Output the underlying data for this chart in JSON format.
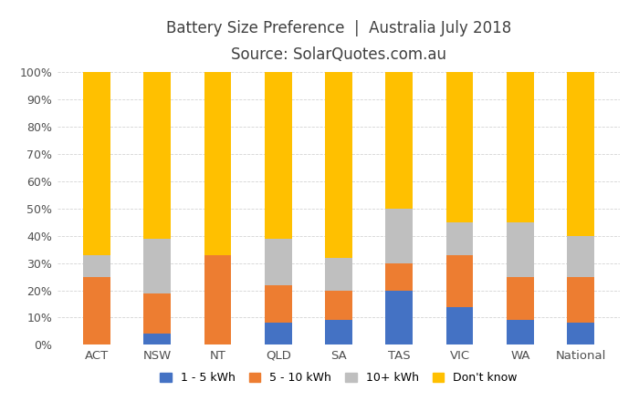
{
  "categories": [
    "ACT",
    "NSW",
    "NT",
    "QLD",
    "SA",
    "TAS",
    "VIC",
    "WA",
    "National"
  ],
  "series": {
    "1 - 5 kWh": [
      0,
      4,
      0,
      8,
      9,
      20,
      14,
      9,
      8
    ],
    "5 - 10 kWh": [
      25,
      15,
      33,
      14,
      11,
      10,
      19,
      16,
      17
    ],
    "10+ kWh": [
      8,
      20,
      0,
      17,
      12,
      20,
      12,
      20,
      15
    ],
    "Don't know": [
      67,
      61,
      67,
      61,
      68,
      50,
      55,
      55,
      60
    ]
  },
  "colors": {
    "1 - 5 kWh": "#4472C4",
    "5 - 10 kWh": "#ED7D31",
    "10+ kWh": "#BFBFBF",
    "Don't know": "#FFC000"
  },
  "title_line1": "Battery Size Preference  |  Australia July 2018",
  "title_line2": "Source: SolarQuotes.com.au",
  "ylim": [
    0,
    100
  ],
  "yticks": [
    0,
    10,
    20,
    30,
    40,
    50,
    60,
    70,
    80,
    90,
    100
  ],
  "ytick_labels": [
    "0%",
    "10%",
    "20%",
    "30%",
    "40%",
    "50%",
    "60%",
    "70%",
    "80%",
    "90%",
    "100%"
  ],
  "legend_order": [
    "1 - 5 kWh",
    "5 - 10 kWh",
    "10+ kWh",
    "Don't know"
  ],
  "background_color": "#FFFFFF",
  "title_color": "#404040",
  "title_fontsize": 12,
  "subtitle_fontsize": 11,
  "bar_width": 0.45,
  "figsize": [
    7.0,
    4.4
  ],
  "dpi": 100
}
